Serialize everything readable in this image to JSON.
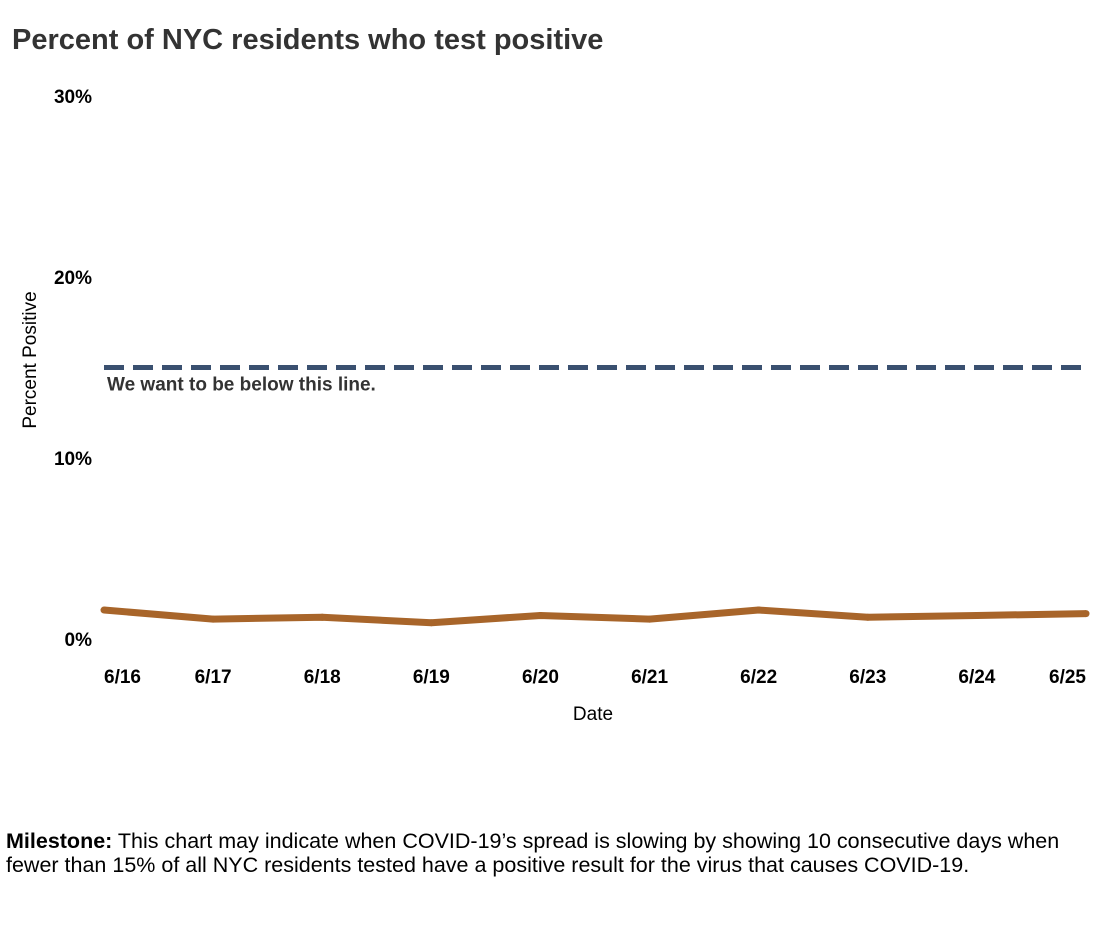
{
  "chart_data": {
    "type": "line",
    "title": "Percent of NYC residents who test positive",
    "xlabel": "Date",
    "ylabel": "Percent Positive",
    "categories": [
      "6/16",
      "6/17",
      "6/18",
      "6/19",
      "6/20",
      "6/21",
      "6/22",
      "6/23",
      "6/24",
      "6/25"
    ],
    "series": [
      {
        "name": "Percent Positive",
        "color": "#A8652A",
        "values": [
          1.6,
          1.1,
          1.2,
          0.9,
          1.3,
          1.1,
          1.6,
          1.2,
          1.3,
          1.4
        ]
      }
    ],
    "yticks": [
      0,
      10,
      20,
      30
    ],
    "ytick_labels": [
      "0%",
      "10%",
      "20%",
      "30%"
    ],
    "ylim": [
      0,
      30
    ],
    "grid": false,
    "reference_line": {
      "value": 15,
      "label": "We want to be below this line.",
      "color": "#3A5070",
      "style": "dashed"
    }
  },
  "milestone": {
    "label": "Milestone:",
    "text": " This chart may indicate when COVID-19’s spread is slowing by showing 10 consecutive days when fewer than 15% of all NYC residents tested have a positive result for the virus that causes COVID-19."
  }
}
